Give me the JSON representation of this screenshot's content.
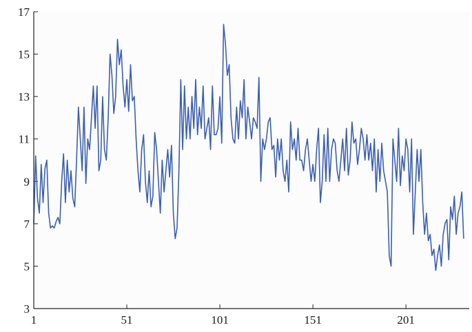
{
  "chart_data": {
    "type": "line",
    "title": "",
    "xlabel": "",
    "ylabel": "",
    "xlim": [
      1,
      235
    ],
    "ylim": [
      3,
      17
    ],
    "x_ticks": [
      1,
      51,
      101,
      151,
      201
    ],
    "y_ticks": [
      3,
      5,
      7,
      9,
      11,
      13,
      15,
      17
    ],
    "x_tick_labels": [
      "1",
      "51",
      "101",
      "151",
      "201"
    ],
    "y_tick_labels": [
      "3",
      "5",
      "7",
      "9",
      "11",
      "13",
      "15",
      "17"
    ],
    "grid": false,
    "legend": "none",
    "colors": {
      "line": "#3a5fb0",
      "axes": "#222222",
      "plot_background": "#fcfcfc"
    },
    "series": [
      {
        "values": [
          7.0,
          10.2,
          8.2,
          7.5,
          9.8,
          8.0,
          9.6,
          10.0,
          7.5,
          6.8,
          6.9,
          6.8,
          7.1,
          7.3,
          7.0,
          9.0,
          10.3,
          8.0,
          10.0,
          8.5,
          9.5,
          8.2,
          7.8,
          10.0,
          12.5,
          11.0,
          9.5,
          12.5,
          8.9,
          11.0,
          10.5,
          12.0,
          13.5,
          11.5,
          13.5,
          9.5,
          10.0,
          13.0,
          10.5,
          10.0,
          12.0,
          15.0,
          14.0,
          12.2,
          13.0,
          15.7,
          14.5,
          15.2,
          13.5,
          12.5,
          13.8,
          12.3,
          14.5,
          12.8,
          13.0,
          11.0,
          9.5,
          8.5,
          10.5,
          11.2,
          9.0,
          8.0,
          9.5,
          7.8,
          8.3,
          11.3,
          10.5,
          9.0,
          7.5,
          10.0,
          8.5,
          9.5,
          10.5,
          9.2,
          10.7,
          7.5,
          6.3,
          6.8,
          9.5,
          13.8,
          10.5,
          13.5,
          11.0,
          12.5,
          11.0,
          13.0,
          11.5,
          13.8,
          11.2,
          12.5,
          11.5,
          13.5,
          11.0,
          11.5,
          12.0,
          10.5,
          13.5,
          11.2,
          11.2,
          11.5,
          13.0,
          10.8,
          16.4,
          15.5,
          14.0,
          14.5,
          12.0,
          11.0,
          10.8,
          12.5,
          11.0,
          12.8,
          12.0,
          13.8,
          11.0,
          12.5,
          11.8,
          11.0,
          12.0,
          11.8,
          11.5,
          13.9,
          9.0,
          11.0,
          10.5,
          11.0,
          11.8,
          12.0,
          10.5,
          10.7,
          9.2,
          11.0,
          10.0,
          11.0,
          9.5,
          9.0,
          10.0,
          8.5,
          11.8,
          10.5,
          11.0,
          10.0,
          11.5,
          10.0,
          10.0,
          9.5,
          10.5,
          11.0,
          10.0,
          9.0,
          9.8,
          9.0,
          10.5,
          11.5,
          8.0,
          9.0,
          11.2,
          9.0,
          11.5,
          9.0,
          10.5,
          11.0,
          10.8,
          9.5,
          9.0,
          10.0,
          11.0,
          9.5,
          11.5,
          9.3,
          10.0,
          11.8,
          10.8,
          11.0,
          9.8,
          10.5,
          11.5,
          11.0,
          10.0,
          11.2,
          10.0,
          10.8,
          9.5,
          11.0,
          8.5,
          10.5,
          9.0,
          10.8,
          9.5,
          9.0,
          8.5,
          5.5,
          5.0,
          11.0,
          10.0,
          9.0,
          11.5,
          8.8,
          10.2,
          9.5,
          11.0,
          10.5,
          8.5,
          11.0,
          6.5,
          8.5,
          10.5,
          9.0,
          10.5,
          8.0,
          6.5,
          7.5,
          6.2,
          6.5,
          5.5,
          5.8,
          4.8,
          5.5,
          6.0,
          5.0,
          6.5,
          7.0,
          7.2,
          5.3,
          7.8,
          7.2,
          8.3,
          6.5,
          7.5,
          7.8,
          8.5,
          6.3
        ]
      }
    ]
  }
}
